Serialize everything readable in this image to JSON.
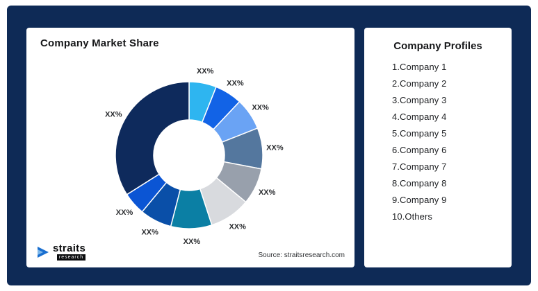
{
  "chart_panel": {
    "title": "Company Market Share",
    "source": "Source: straitsresearch.com",
    "logo": {
      "brand": "straits",
      "sub": "research"
    }
  },
  "profiles_panel": {
    "title": "Company Profiles",
    "items": [
      "1.Company 1",
      "2.Company 2",
      "3.Company 3",
      "4.Company 4",
      "5.Company 5",
      "6.Company 6",
      "7.Company 7",
      "8.Company 8",
      "9.Company 9",
      "10.Others"
    ]
  },
  "chart_data": {
    "type": "pie",
    "subtype": "donut",
    "title": "Company Market Share",
    "categories": [
      "Company 1",
      "Company 2",
      "Company 3",
      "Company 4",
      "Company 5",
      "Company 6",
      "Company 7",
      "Company 8",
      "Company 9",
      "Others"
    ],
    "value_labels": [
      "XX%",
      "XX%",
      "XX%",
      "XX%",
      "XX%",
      "XX%",
      "XX%",
      "XX%",
      "XX%",
      "XX%"
    ],
    "values": [
      6,
      6,
      7,
      9,
      8,
      9,
      9,
      7,
      5,
      34
    ],
    "colors": [
      "#2eb5f0",
      "#1263e6",
      "#6aa3f4",
      "#54779e",
      "#98a0ac",
      "#d8dade",
      "#0b7fa4",
      "#0a4fa8",
      "#0b55d4",
      "#0e2a5c"
    ],
    "inner_radius_ratio": 0.48,
    "start_angle_deg": 0,
    "direction": "clockwise",
    "legend_position": "right-panel-list"
  }
}
